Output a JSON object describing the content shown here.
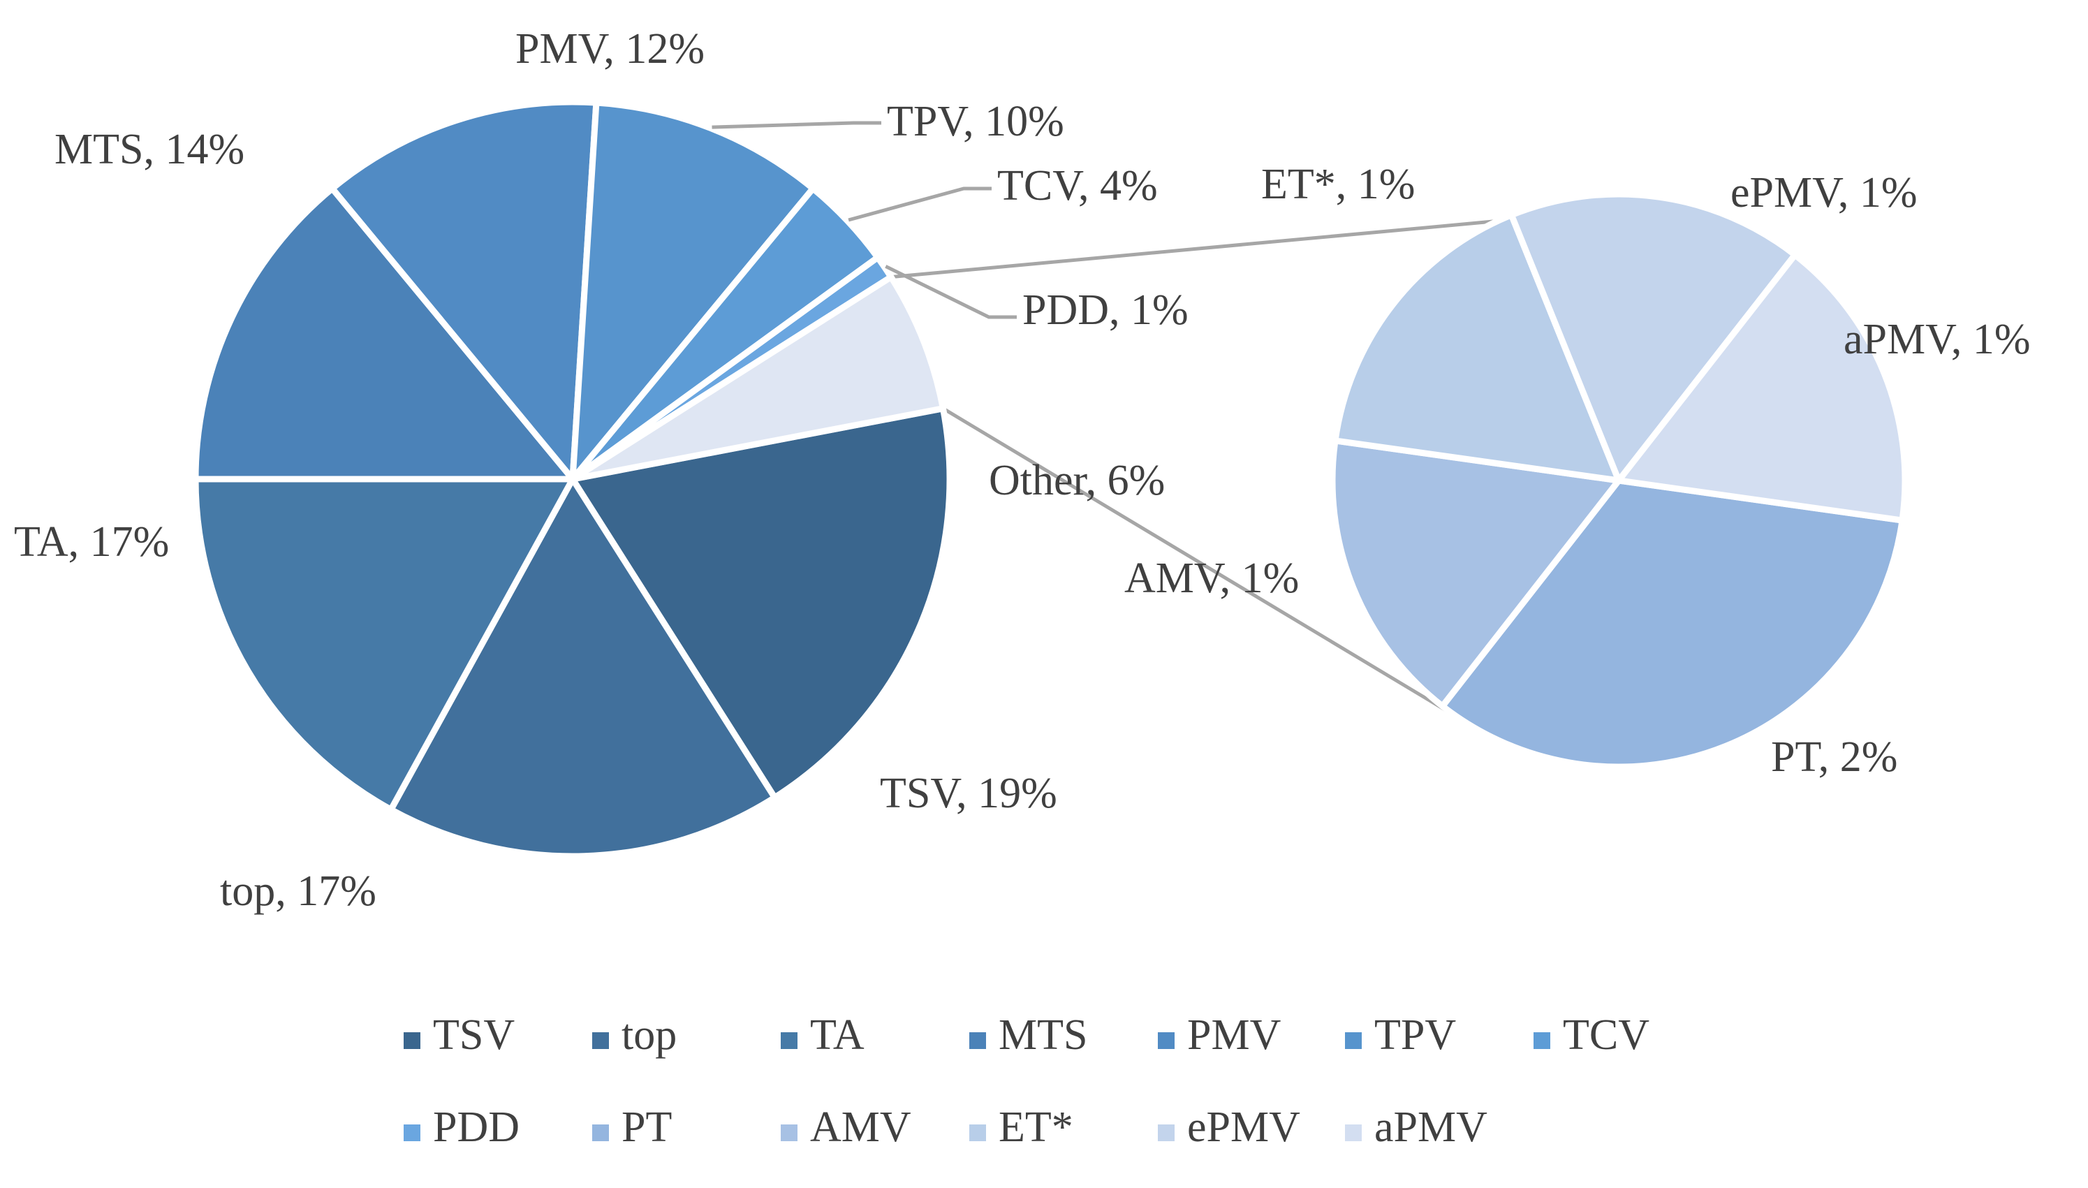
{
  "chart_data": {
    "type": "pie-of-pie",
    "main_pie": {
      "labels": [
        "TSV",
        "top",
        "TA",
        "MTS",
        "PMV",
        "TPV",
        "TCV",
        "PDD",
        "Other"
      ],
      "values": [
        19,
        17,
        17,
        14,
        12,
        10,
        4,
        1,
        6
      ],
      "data_labels": [
        "TSV, 19%",
        "top, 17%",
        "TA, 17%",
        "MTS, 14%",
        "PMV, 12%",
        "TPV, 10%",
        "TCV, 4%",
        "PDD, 1%",
        "Other, 6%"
      ]
    },
    "secondary_pie": {
      "labels": [
        "PT",
        "AMV",
        "ET*",
        "ePMV",
        "aPMV"
      ],
      "values": [
        2,
        1,
        1,
        1,
        1
      ],
      "data_labels": [
        "PT, 2%",
        "AMV, 1%",
        "ET*, 1%",
        "ePMV, 1%",
        "aPMV, 1%"
      ]
    },
    "legend": {
      "position": "bottom",
      "entries": [
        "TSV",
        "top",
        "TA",
        "MTS",
        "PMV",
        "TPV",
        "TCV",
        "PDD",
        "PT",
        "AMV",
        "ET*",
        "ePMV",
        "aPMV"
      ]
    },
    "colors": {
      "TSV": "#3a668e",
      "top": "#41709c",
      "TA": "#467aa7",
      "MTS": "#4b82b8",
      "PMV": "#518bc4",
      "TPV": "#5794cd",
      "TCV": "#5d9cd6",
      "PDD": "#6aa6e0",
      "PT": "#94b5df",
      "AMV": "#a7c1e4",
      "ET*": "#b8cee9",
      "ePMV": "#c3d4ec",
      "aPMV": "#d3def1",
      "Other": "#dfe6f3",
      "connector": "#a6a6a6",
      "text": "#404040"
    }
  }
}
